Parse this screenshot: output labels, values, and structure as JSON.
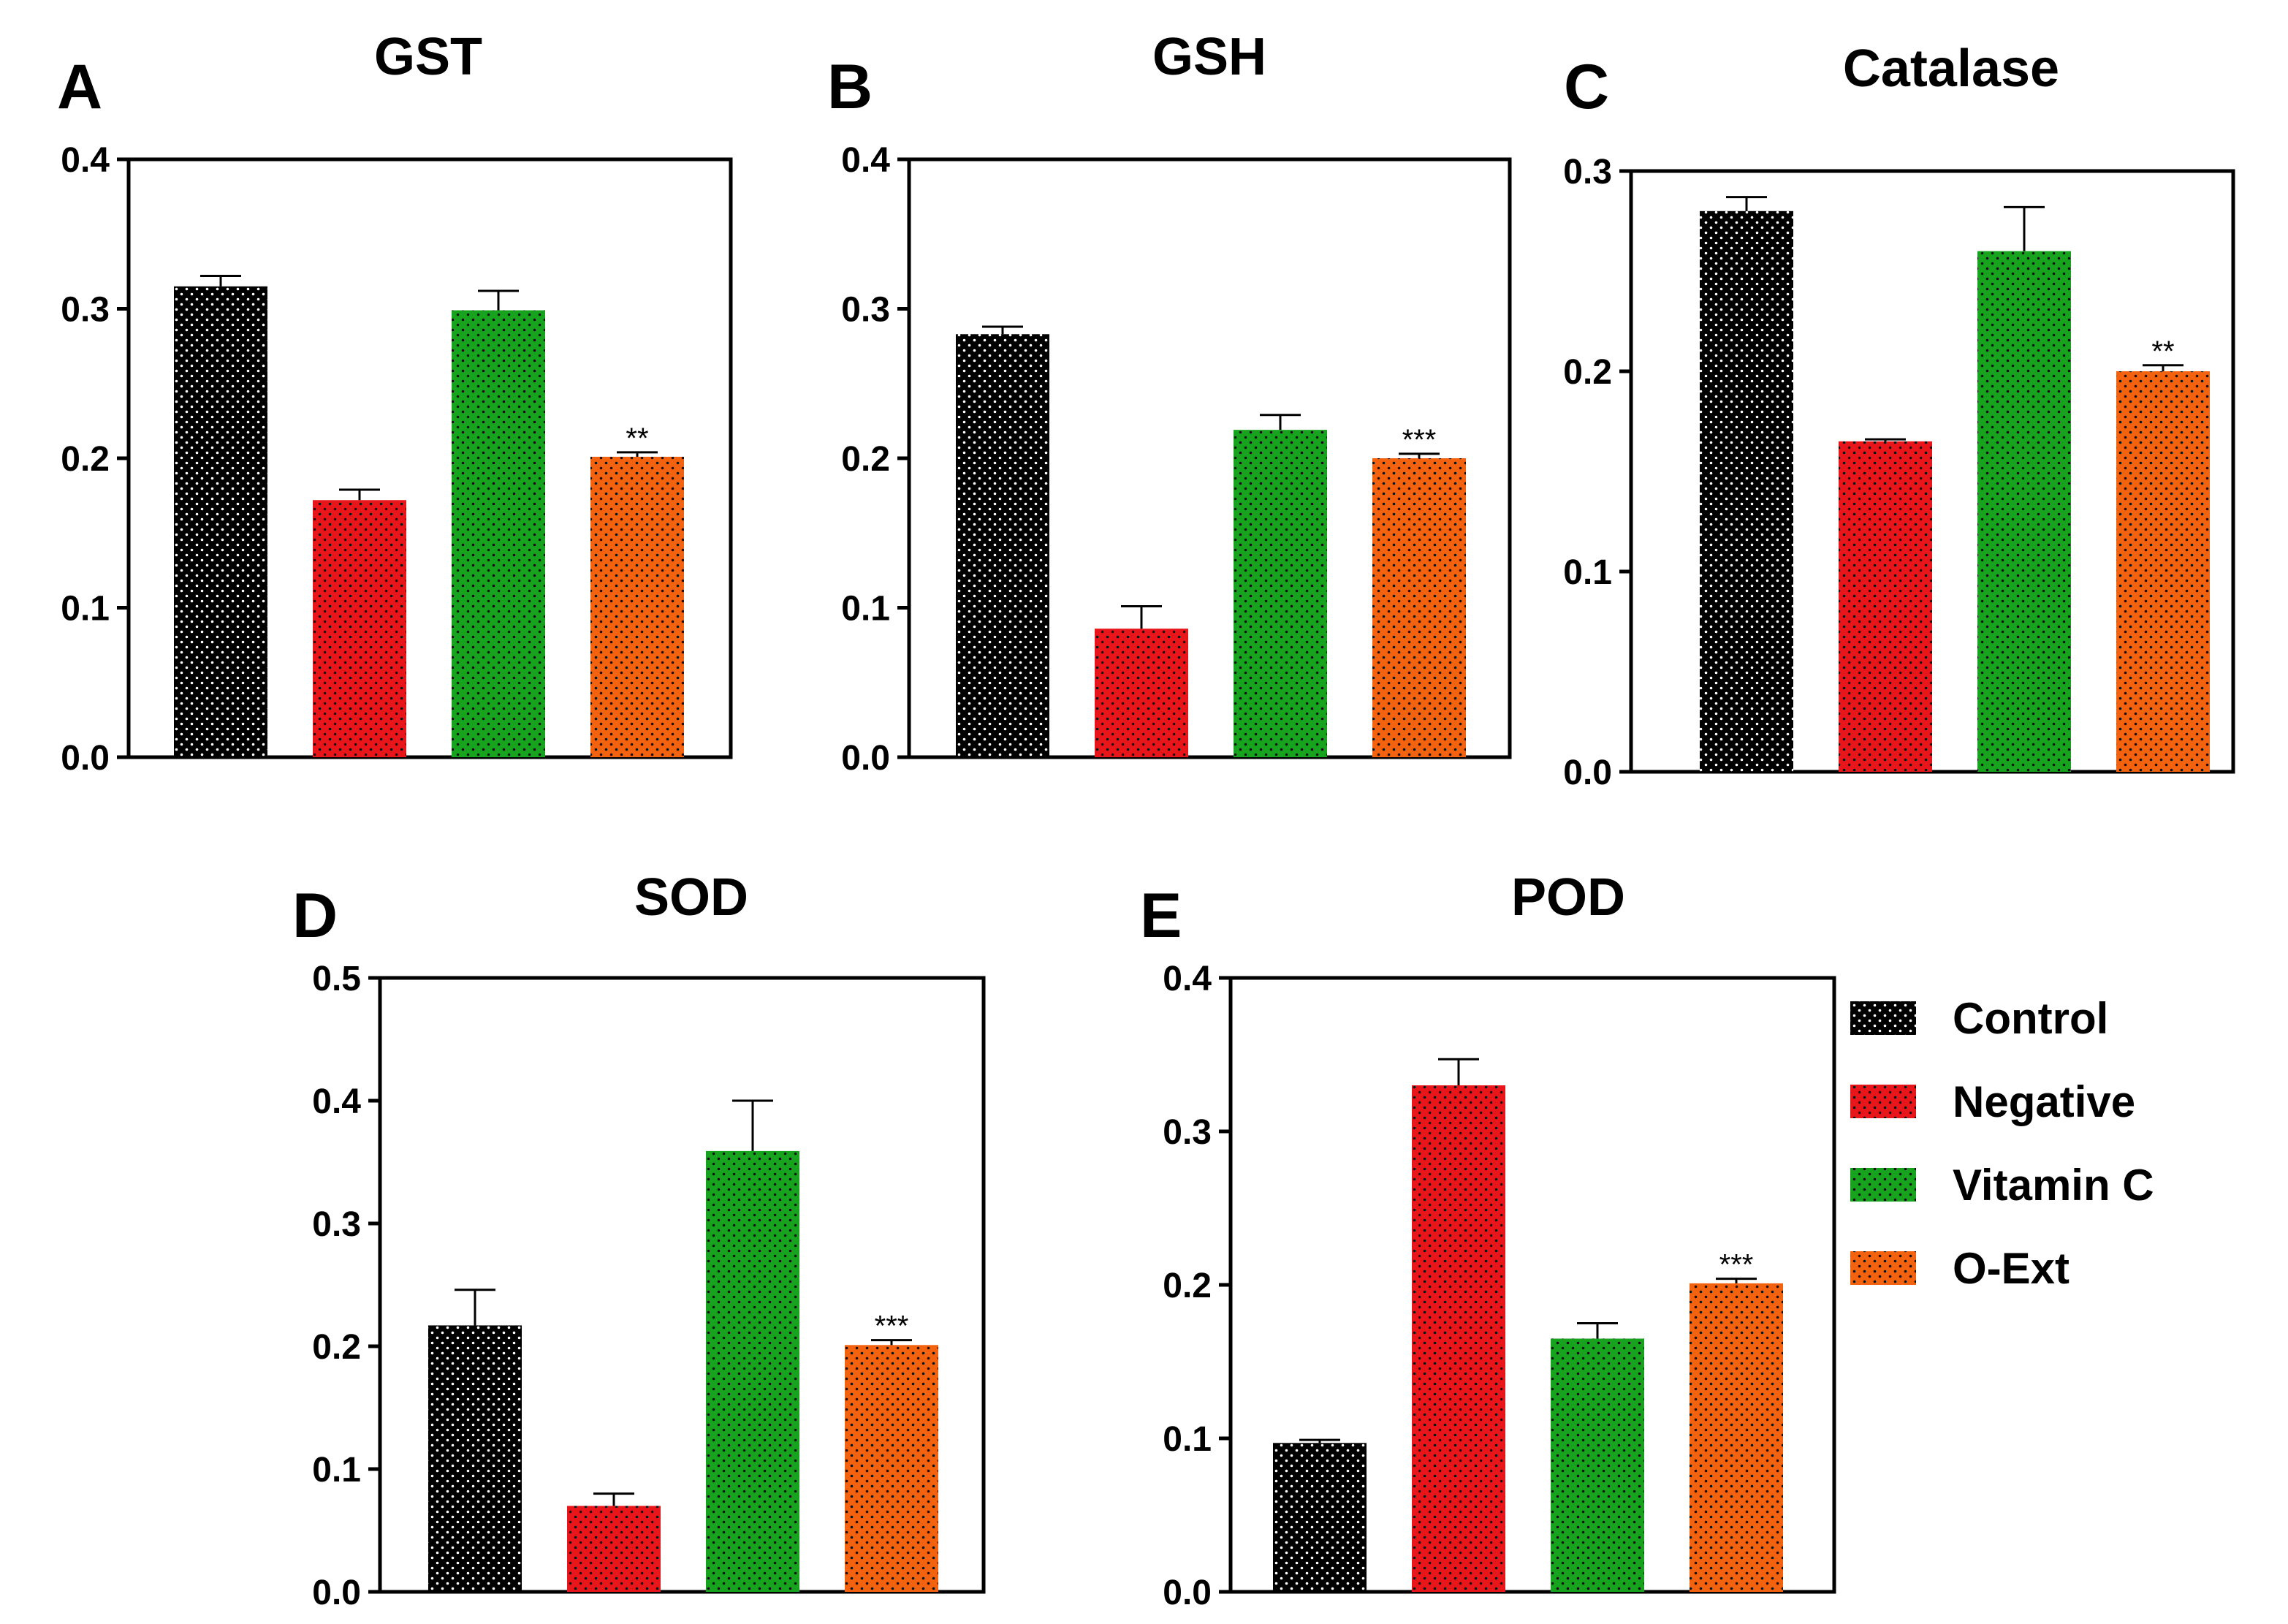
{
  "legend": [
    {
      "key": "control",
      "label": "Control",
      "color": "#000000",
      "dot": "#ffffff"
    },
    {
      "key": "negative",
      "label": "Negative",
      "color": "#e8161b",
      "dot": "#111111"
    },
    {
      "key": "vitaminc",
      "label": "Vitamin C",
      "color": "#18a31f",
      "dot": "#111111"
    },
    {
      "key": "oext",
      "label": "O-Ext",
      "color": "#f2620f",
      "dot": "#111111"
    }
  ],
  "chart_data": [
    {
      "type": "bar",
      "panel": "A",
      "title": "GST",
      "categories": [
        "Control",
        "Negative",
        "Vitamin C",
        "O-Ext"
      ],
      "values": [
        0.315,
        0.172,
        0.299,
        0.201
      ],
      "errors": [
        0.007,
        0.007,
        0.013,
        0.003
      ],
      "significance": [
        "",
        "",
        "",
        "**"
      ],
      "ylim": [
        0,
        0.4
      ],
      "ticks": [
        {
          "v": 0,
          "label": "0.0"
        },
        {
          "v": 0.1,
          "label": "0.1"
        },
        {
          "v": 0.2,
          "label": "0.2"
        },
        {
          "v": 0.3,
          "label": "0.3"
        },
        {
          "v": 0.4,
          "label": "0.4"
        }
      ],
      "xlabel": "",
      "ylabel": ""
    },
    {
      "type": "bar",
      "panel": "B",
      "title": "GSH",
      "categories": [
        "Control",
        "Negative",
        "Vitamin C",
        "O-Ext"
      ],
      "values": [
        0.283,
        0.086,
        0.219,
        0.2
      ],
      "errors": [
        0.005,
        0.015,
        0.01,
        0.003
      ],
      "significance": [
        "",
        "",
        "",
        "***"
      ],
      "ylim": [
        0,
        0.4
      ],
      "ticks": [
        {
          "v": 0,
          "label": "0.0"
        },
        {
          "v": 0.1,
          "label": "0.1"
        },
        {
          "v": 0.2,
          "label": "0.2"
        },
        {
          "v": 0.3,
          "label": "0.3"
        },
        {
          "v": 0.4,
          "label": "0.4"
        }
      ],
      "xlabel": "",
      "ylabel": ""
    },
    {
      "type": "bar",
      "panel": "C",
      "title": "Catalase",
      "categories": [
        "Control",
        "Negative",
        "Vitamin C",
        "O-Ext"
      ],
      "values": [
        0.28,
        0.165,
        0.26,
        0.2
      ],
      "errors": [
        0.007,
        0.001,
        0.022,
        0.003
      ],
      "significance": [
        "",
        "",
        "",
        "**"
      ],
      "ylim": [
        0,
        0.3
      ],
      "ticks": [
        {
          "v": 0,
          "label": "0.0"
        },
        {
          "v": 0.1,
          "label": "0.1"
        },
        {
          "v": 0.2,
          "label": "0.2"
        },
        {
          "v": 0.3,
          "label": "0.3"
        }
      ],
      "xlabel": "",
      "ylabel": ""
    },
    {
      "type": "bar",
      "panel": "D",
      "title": "SOD",
      "categories": [
        "Control",
        "Negative",
        "Vitamin C",
        "O-Ext"
      ],
      "values": [
        0.217,
        0.07,
        0.359,
        0.201
      ],
      "errors": [
        0.029,
        0.01,
        0.041,
        0.004
      ],
      "significance": [
        "",
        "",
        "",
        "***"
      ],
      "ylim": [
        0,
        0.5
      ],
      "ticks": [
        {
          "v": 0,
          "label": "0.0"
        },
        {
          "v": 0.1,
          "label": "0.1"
        },
        {
          "v": 0.2,
          "label": "0.2"
        },
        {
          "v": 0.3,
          "label": "0.3"
        },
        {
          "v": 0.4,
          "label": "0.4"
        },
        {
          "v": 0.5,
          "label": "0.5"
        }
      ],
      "xlabel": "",
      "ylabel": ""
    },
    {
      "type": "bar",
      "panel": "E",
      "title": "POD",
      "categories": [
        "Control",
        "Negative",
        "Vitamin C",
        "O-Ext"
      ],
      "values": [
        0.097,
        0.33,
        0.165,
        0.201
      ],
      "errors": [
        0.002,
        0.017,
        0.01,
        0.003
      ],
      "significance": [
        "",
        "",
        "",
        "***"
      ],
      "ylim": [
        0,
        0.4
      ],
      "ticks": [
        {
          "v": 0,
          "label": "0.0"
        },
        {
          "v": 0.1,
          "label": "0.1"
        },
        {
          "v": 0.2,
          "label": "0.2"
        },
        {
          "v": 0.3,
          "label": "0.3"
        },
        {
          "v": 0.4,
          "label": "0.4"
        }
      ],
      "xlabel": "",
      "ylabel": ""
    }
  ]
}
